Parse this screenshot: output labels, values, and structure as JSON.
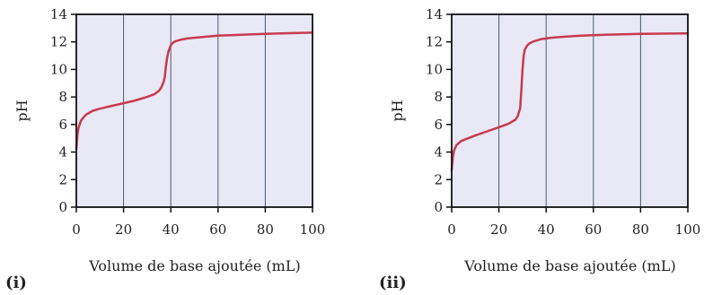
{
  "chart_data": [
    {
      "type": "line",
      "panel_label": "(i)",
      "xlabel": "Volume de base ajoutée (mL)",
      "ylabel": "pH",
      "xlim": [
        0,
        100
      ],
      "ylim": [
        0,
        14
      ],
      "x_ticks": [
        "0",
        "20",
        "40",
        "60",
        "80",
        "100"
      ],
      "y_ticks": [
        "0",
        "2",
        "4",
        "6",
        "8",
        "10",
        "12",
        "14"
      ],
      "grid": "vertical",
      "plot_background": "#e9e9f5",
      "line_color": "#c8394f",
      "grid_color": "#4a5a7a",
      "series": [
        {
          "x": [
            0,
            0.5,
            1,
            2,
            4,
            7,
            10,
            15,
            20,
            25,
            30,
            33,
            35,
            36,
            37,
            37.5,
            38,
            38.5,
            39,
            39.5,
            40,
            41,
            42,
            44,
            47,
            50,
            55,
            60,
            70,
            80,
            90,
            100
          ],
          "y": [
            4.2,
            5.3,
            5.8,
            6.3,
            6.7,
            7.0,
            7.15,
            7.35,
            7.55,
            7.75,
            8.0,
            8.2,
            8.45,
            8.7,
            9.1,
            9.5,
            10.3,
            10.9,
            11.3,
            11.55,
            11.75,
            11.95,
            12.05,
            12.15,
            12.25,
            12.3,
            12.38,
            12.45,
            12.52,
            12.58,
            12.63,
            12.67
          ]
        }
      ]
    },
    {
      "type": "line",
      "panel_label": "(ii)",
      "xlabel": "Volume de base ajoutée (mL)",
      "ylabel": "pH",
      "xlim": [
        0,
        100
      ],
      "ylim": [
        0,
        14
      ],
      "x_ticks": [
        "0",
        "20",
        "40",
        "60",
        "80",
        "100"
      ],
      "y_ticks": [
        "0",
        "2",
        "4",
        "6",
        "8",
        "10",
        "12",
        "14"
      ],
      "grid": "vertical",
      "plot_background": "#e9e9f5",
      "line_color": "#c8394f",
      "grid_color": "#4a5a7a",
      "series": [
        {
          "x": [
            0,
            0.5,
            1,
            2,
            4,
            7,
            10,
            15,
            20,
            24,
            27,
            28,
            29,
            29.5,
            30,
            30.5,
            31,
            32,
            33,
            35,
            38,
            42,
            48,
            55,
            65,
            80,
            100
          ],
          "y": [
            2.7,
            3.6,
            4.1,
            4.5,
            4.8,
            5.0,
            5.2,
            5.5,
            5.8,
            6.05,
            6.35,
            6.6,
            7.2,
            8.5,
            10.0,
            11.0,
            11.45,
            11.75,
            11.9,
            12.05,
            12.2,
            12.3,
            12.38,
            12.45,
            12.52,
            12.58,
            12.62
          ]
        }
      ]
    }
  ]
}
